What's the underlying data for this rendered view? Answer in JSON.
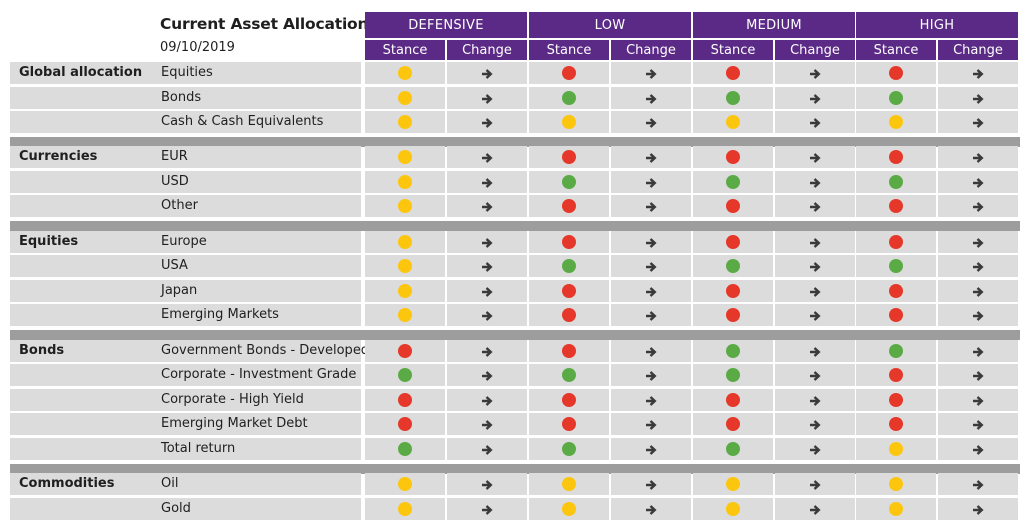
{
  "title": "Current Asset Allocation",
  "date": "09/10/2019",
  "profiles": [
    "DEFENSIVE",
    "LOW",
    "MEDIUM",
    "HIGH"
  ],
  "subheaders": {
    "stance": "Stance",
    "change": "Change"
  },
  "colors": {
    "green": "#5aab46",
    "amber": "#fcc60f",
    "red": "#e5382a",
    "purple": "#5b2a86"
  },
  "change_icon": "right-arrow-icon",
  "groups": [
    {
      "name": "Global allocation",
      "rows": [
        {
          "asset": "Equities",
          "stances": [
            "amber",
            "red",
            "red",
            "red"
          ]
        },
        {
          "asset": "Bonds",
          "stances": [
            "amber",
            "green",
            "green",
            "green"
          ]
        },
        {
          "asset": "Cash & Cash Equivalents",
          "stances": [
            "amber",
            "amber",
            "amber",
            "amber"
          ]
        }
      ]
    },
    {
      "name": "Currencies",
      "rows": [
        {
          "asset": "EUR",
          "stances": [
            "amber",
            "red",
            "red",
            "red"
          ]
        },
        {
          "asset": "USD",
          "stances": [
            "amber",
            "green",
            "green",
            "green"
          ]
        },
        {
          "asset": "Other",
          "stances": [
            "amber",
            "red",
            "red",
            "red"
          ]
        }
      ]
    },
    {
      "name": "Equities",
      "rows": [
        {
          "asset": "Europe",
          "stances": [
            "amber",
            "red",
            "red",
            "red"
          ]
        },
        {
          "asset": "USA",
          "stances": [
            "amber",
            "green",
            "green",
            "green"
          ]
        },
        {
          "asset": "Japan",
          "stances": [
            "amber",
            "red",
            "red",
            "red"
          ]
        },
        {
          "asset": "Emerging Markets",
          "stances": [
            "amber",
            "red",
            "red",
            "red"
          ]
        }
      ]
    },
    {
      "name": "Bonds",
      "rows": [
        {
          "asset": "Government Bonds - Developed",
          "stances": [
            "red",
            "red",
            "green",
            "green"
          ]
        },
        {
          "asset": "Corporate - Investment Grade",
          "stances": [
            "green",
            "green",
            "green",
            "red"
          ]
        },
        {
          "asset": "Corporate - High Yield",
          "stances": [
            "red",
            "red",
            "red",
            "red"
          ]
        },
        {
          "asset": "Emerging Market Debt",
          "stances": [
            "red",
            "red",
            "red",
            "red"
          ]
        },
        {
          "asset": "Total return",
          "stances": [
            "green",
            "green",
            "green",
            "amber"
          ]
        }
      ]
    },
    {
      "name": "Commodities",
      "rows": [
        {
          "asset": "Oil",
          "stances": [
            "amber",
            "amber",
            "amber",
            "amber"
          ]
        },
        {
          "asset": "Gold",
          "stances": [
            "amber",
            "amber",
            "amber",
            "amber"
          ]
        }
      ]
    }
  ]
}
